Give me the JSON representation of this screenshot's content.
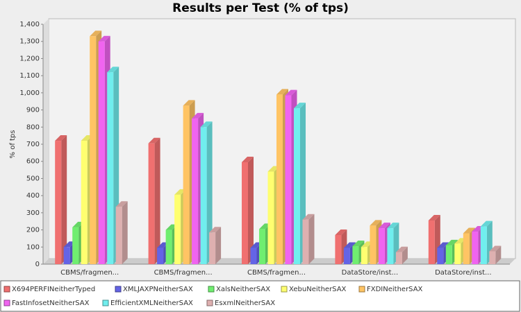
{
  "chart_data": {
    "type": "bar3d",
    "title": "Results per Test (% of tps)",
    "y_label": "% of tps",
    "categories": [
      "CBMS/fragmen...",
      "CBMS/fragmen...",
      "CBMS/fragmen...",
      "DataStore/inst...",
      "DataStore/inst..."
    ],
    "series": [
      {
        "name": "X694PERFINeitherTyped",
        "color": "#f07070",
        "values": [
          720,
          705,
          595,
          170,
          255
        ]
      },
      {
        "name": "XMLJAXPNeitherSAX",
        "color": "#6464e6",
        "values": [
          100,
          95,
          95,
          95,
          95
        ]
      },
      {
        "name": "XalsNeitherSAX",
        "color": "#70ee70",
        "values": [
          215,
          200,
          205,
          105,
          110
        ]
      },
      {
        "name": "XebuNeitherSAX",
        "color": "#ffff70",
        "values": [
          720,
          405,
          540,
          100,
          120
        ]
      },
      {
        "name": "FXDINeitherSAX",
        "color": "#ffc464",
        "values": [
          1330,
          925,
          990,
          225,
          180
        ]
      },
      {
        "name": "FastInfosetNeitherSAX",
        "color": "#f064f0",
        "values": [
          1300,
          850,
          985,
          210,
          190
        ]
      },
      {
        "name": "EfficientXMLNeitherSAX",
        "color": "#70eeee",
        "values": [
          1120,
          800,
          910,
          210,
          220
        ]
      },
      {
        "name": "EsxmlNeitherSAX",
        "color": "#deb0b0",
        "values": [
          335,
          185,
          260,
          70,
          75
        ]
      }
    ],
    "ylim": [
      0,
      1400
    ],
    "yticks": [
      0,
      100,
      200,
      300,
      400,
      500,
      600,
      700,
      800,
      900,
      {
        "value": 1000,
        "label": "1,000"
      },
      {
        "value": 1100,
        "label": "1,100"
      },
      {
        "value": 1200,
        "label": "1,200"
      },
      {
        "value": 1300,
        "label": "1,300"
      },
      {
        "value": 1400,
        "label": "1,400"
      }
    ],
    "grid": false
  }
}
